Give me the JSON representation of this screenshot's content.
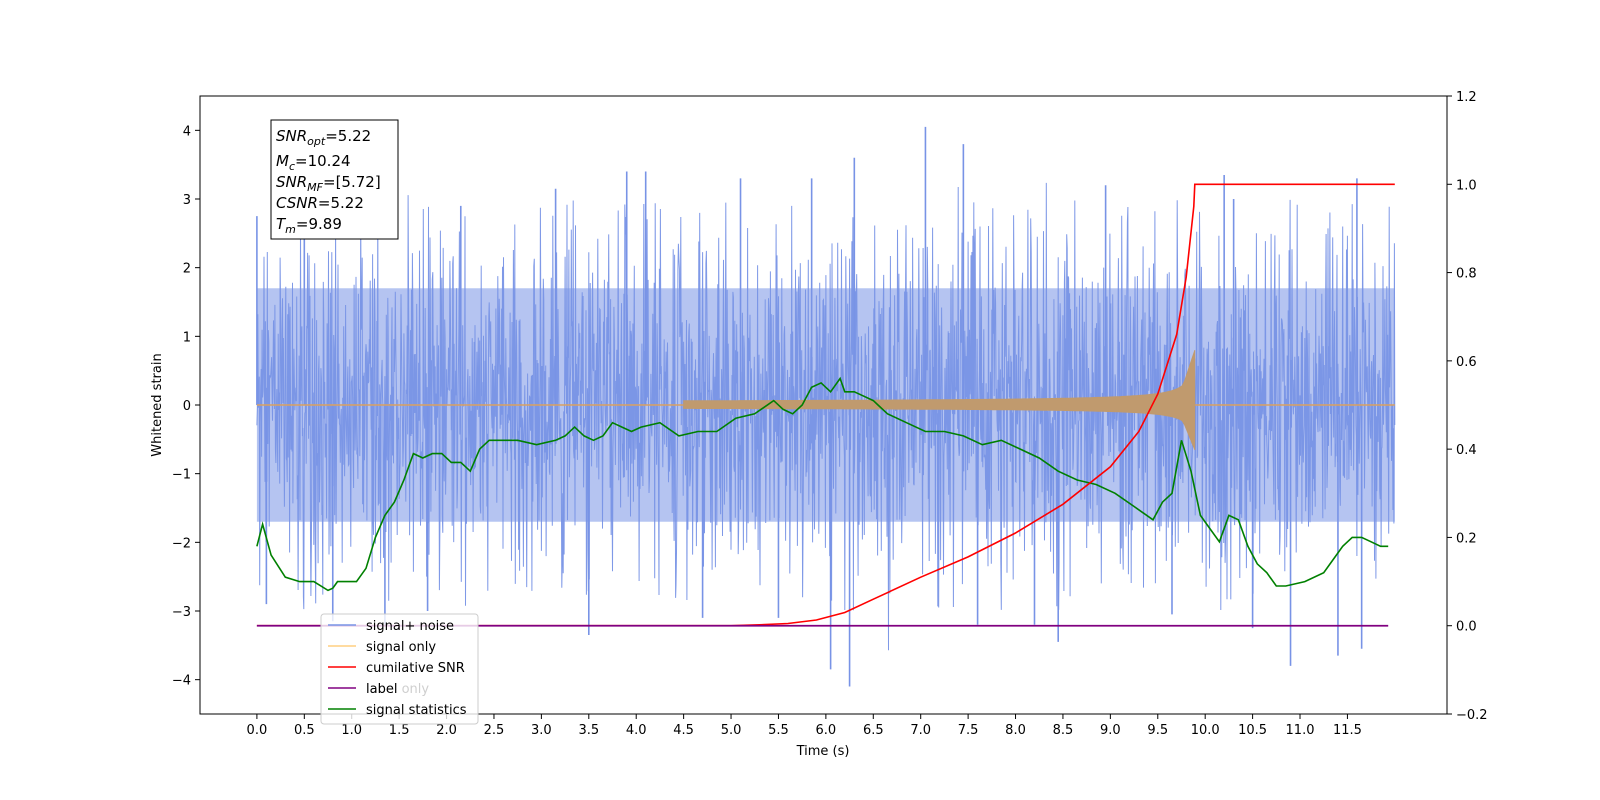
{
  "chart_data": {
    "type": "line",
    "xlabel": "Time (s)",
    "ylabel": "Whitened strain",
    "xlim": [
      -0.6,
      12.55
    ],
    "ylim": [
      -4.5,
      4.5
    ],
    "y2lim": [
      -0.2,
      1.2
    ],
    "xticks": [
      "0.0",
      "0.5",
      "1.0",
      "1.5",
      "2.0",
      "2.5",
      "3.0",
      "3.5",
      "4.0",
      "4.5",
      "5.0",
      "5.5",
      "6.0",
      "6.5",
      "7.0",
      "7.5",
      "8.0",
      "8.5",
      "9.0",
      "9.5",
      "10.0",
      "10.5",
      "11.0",
      "11.5"
    ],
    "yticks": [
      "4",
      "3",
      "2",
      "1",
      "0",
      "−1",
      "−2",
      "−3",
      "−4"
    ],
    "y2ticks": [
      "1.2",
      "1.0",
      "0.8",
      "0.6",
      "0.4",
      "0.2",
      "0.0",
      "−0.2"
    ],
    "annotation": [
      {
        "main": "SNR",
        "sub": "opt",
        "value": "=5.22"
      },
      {
        "main": "M",
        "sub": "c",
        "value": "=10.24"
      },
      {
        "main": "SNR",
        "sub": "MF",
        "value": "=[5.72]"
      },
      {
        "main": "CSNR",
        "sub": "",
        "value": "=5.22"
      },
      {
        "main": "T",
        "sub": "m",
        "value": "=9.89"
      }
    ],
    "legend": {
      "placement": "lower-left",
      "entries": [
        {
          "label": "signal+ noise",
          "color": "#7893e6"
        },
        {
          "label": "signal only",
          "color": "#ffcf80"
        },
        {
          "label": "cumilative SNR",
          "color": "#ff0000"
        },
        {
          "label": "label",
          "color": "#800080"
        },
        {
          "label": "signal statistics",
          "color": "#008000"
        }
      ],
      "ghost_text": "label only"
    },
    "series": [
      {
        "name": "signal+ noise",
        "axis": "left",
        "color": "#7893e6",
        "x_range": [
          0.0,
          12.0
        ],
        "envelope_low": -1.7,
        "envelope_high": 1.7,
        "spikes": [
          {
            "x": 0.0,
            "y": 2.75
          },
          {
            "x": 0.1,
            "y": -2.9
          },
          {
            "x": 0.5,
            "y": 2.6
          },
          {
            "x": 0.8,
            "y": -3.15
          },
          {
            "x": 1.35,
            "y": -3.2
          },
          {
            "x": 1.8,
            "y": -3.0
          },
          {
            "x": 2.15,
            "y": 2.9
          },
          {
            "x": 3.15,
            "y": 3.15
          },
          {
            "x": 3.5,
            "y": -3.35
          },
          {
            "x": 3.9,
            "y": 3.4
          },
          {
            "x": 4.1,
            "y": 3.4
          },
          {
            "x": 4.7,
            "y": -3.1
          },
          {
            "x": 5.1,
            "y": 3.3
          },
          {
            "x": 5.5,
            "y": -3.1
          },
          {
            "x": 5.85,
            "y": 3.3
          },
          {
            "x": 6.05,
            "y": -3.85
          },
          {
            "x": 6.25,
            "y": -4.1
          },
          {
            "x": 6.3,
            "y": 3.6
          },
          {
            "x": 7.05,
            "y": 4.05
          },
          {
            "x": 7.45,
            "y": 3.8
          },
          {
            "x": 7.6,
            "y": -3.2
          },
          {
            "x": 8.2,
            "y": -3.2
          },
          {
            "x": 8.45,
            "y": -3.45
          },
          {
            "x": 8.95,
            "y": 3.2
          },
          {
            "x": 9.65,
            "y": -3.05
          },
          {
            "x": 10.2,
            "y": 3.35
          },
          {
            "x": 10.3,
            "y": 3.0
          },
          {
            "x": 10.5,
            "y": -3.25
          },
          {
            "x": 10.9,
            "y": -3.8
          },
          {
            "x": 11.4,
            "y": -3.65
          },
          {
            "x": 11.65,
            "y": -3.55
          },
          {
            "x": 11.6,
            "y": 3.3
          }
        ]
      },
      {
        "name": "signal only",
        "axis": "left",
        "color": "#ffcf80",
        "chirp_end": 9.89,
        "chirp_peak": 0.8
      },
      {
        "name": "cumilative SNR",
        "axis": "right",
        "color": "#ff0000",
        "x": [
          0.0,
          5.0,
          5.3,
          5.6,
          5.9,
          6.2,
          6.5,
          7.0,
          7.5,
          8.0,
          8.5,
          9.0,
          9.3,
          9.5,
          9.7,
          9.8,
          9.88,
          9.89,
          12.0
        ],
        "y": [
          0.0,
          0.0,
          0.002,
          0.005,
          0.013,
          0.03,
          0.06,
          0.11,
          0.156,
          0.21,
          0.275,
          0.36,
          0.44,
          0.525,
          0.66,
          0.79,
          0.95,
          1.0,
          1.0
        ]
      },
      {
        "name": "label",
        "axis": "right",
        "color": "#800080",
        "x": [
          0.0,
          11.93
        ],
        "y": [
          0.0,
          0.0
        ]
      },
      {
        "name": "signal statistics",
        "axis": "right",
        "color": "#008000",
        "x": [
          0.0,
          0.06,
          0.15,
          0.3,
          0.45,
          0.6,
          0.75,
          0.8,
          0.85,
          0.95,
          1.05,
          1.15,
          1.25,
          1.35,
          1.45,
          1.55,
          1.65,
          1.75,
          1.85,
          1.95,
          2.05,
          2.15,
          2.25,
          2.35,
          2.45,
          2.55,
          2.75,
          2.95,
          3.15,
          3.25,
          3.35,
          3.45,
          3.55,
          3.65,
          3.75,
          3.85,
          3.95,
          4.05,
          4.25,
          4.45,
          4.65,
          4.85,
          5.05,
          5.25,
          5.45,
          5.55,
          5.65,
          5.75,
          5.85,
          5.95,
          6.05,
          6.15,
          6.2,
          6.3,
          6.4,
          6.5,
          6.55,
          6.65,
          6.85,
          7.05,
          7.25,
          7.45,
          7.65,
          7.85,
          8.05,
          8.25,
          8.45,
          8.65,
          8.85,
          9.05,
          9.25,
          9.45,
          9.55,
          9.65,
          9.75,
          9.85,
          9.95,
          10.05,
          10.15,
          10.25,
          10.35,
          10.45,
          10.55,
          10.65,
          10.75,
          10.85,
          11.05,
          11.25,
          11.35,
          11.45,
          11.55,
          11.65,
          11.75,
          11.85,
          11.93
        ],
        "y": [
          0.18,
          0.23,
          0.16,
          0.11,
          0.1,
          0.1,
          0.08,
          0.085,
          0.1,
          0.1,
          0.1,
          0.13,
          0.2,
          0.25,
          0.28,
          0.33,
          0.39,
          0.38,
          0.39,
          0.39,
          0.37,
          0.37,
          0.35,
          0.4,
          0.42,
          0.42,
          0.42,
          0.41,
          0.42,
          0.43,
          0.45,
          0.43,
          0.42,
          0.43,
          0.46,
          0.45,
          0.44,
          0.45,
          0.46,
          0.43,
          0.44,
          0.44,
          0.47,
          0.48,
          0.51,
          0.49,
          0.48,
          0.5,
          0.54,
          0.55,
          0.53,
          0.56,
          0.53,
          0.53,
          0.52,
          0.51,
          0.5,
          0.48,
          0.46,
          0.44,
          0.44,
          0.43,
          0.41,
          0.42,
          0.4,
          0.38,
          0.35,
          0.33,
          0.32,
          0.3,
          0.27,
          0.24,
          0.28,
          0.3,
          0.42,
          0.35,
          0.25,
          0.22,
          0.19,
          0.25,
          0.24,
          0.18,
          0.14,
          0.12,
          0.09,
          0.09,
          0.1,
          0.12,
          0.15,
          0.18,
          0.2,
          0.2,
          0.19,
          0.18,
          0.18
        ]
      }
    ]
  }
}
